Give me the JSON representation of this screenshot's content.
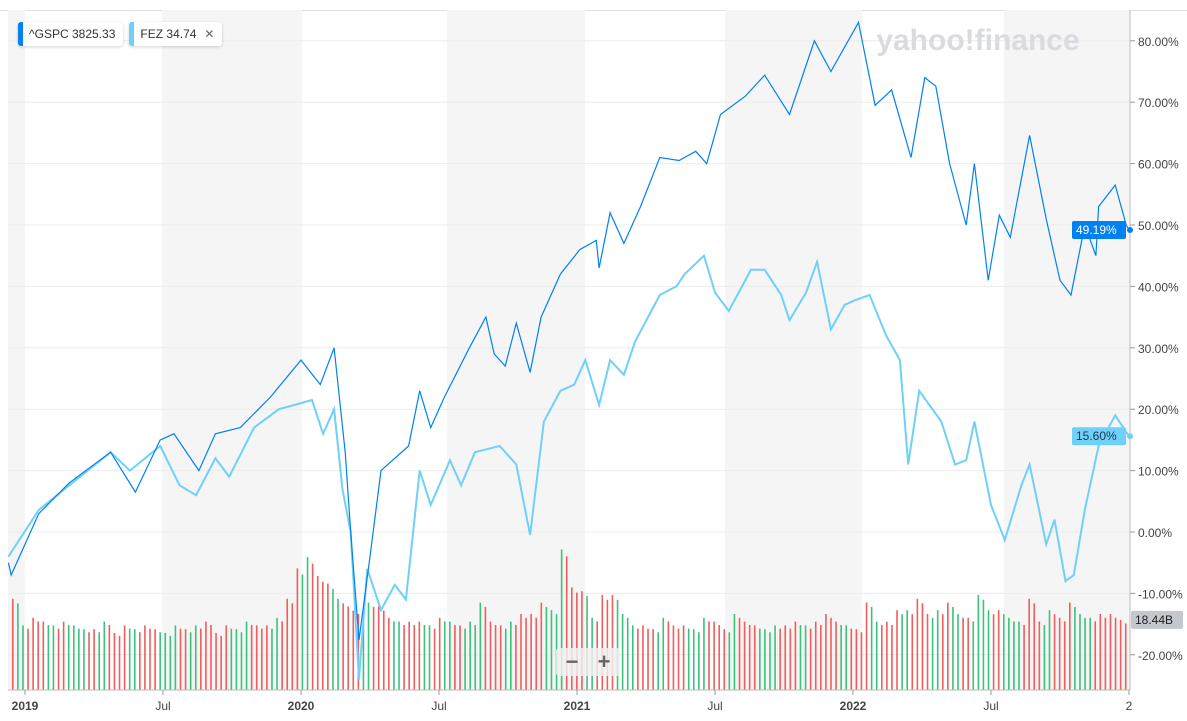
{
  "legend": [
    {
      "label": "^GSPC",
      "value": "3825.33",
      "color": "#0081f2"
    },
    {
      "label": "FEZ",
      "value": "34.74",
      "color": "#6fd0fa",
      "close": "✕"
    }
  ],
  "watermark": "yahoo!finance",
  "zoom": {
    "minus": "−",
    "plus": "+"
  },
  "chart_data": {
    "type": "line",
    "title": "",
    "xlabel": "",
    "ylabel": "",
    "ylim": [
      -25,
      85
    ],
    "x_ticks": [
      {
        "t": 2019,
        "label": "2019"
      },
      {
        "t": 2019.5,
        "label": "Jul"
      },
      {
        "t": 2020,
        "label": "2020"
      },
      {
        "t": 2020.5,
        "label": "Jul"
      },
      {
        "t": 2021,
        "label": "2021"
      },
      {
        "t": 2021.5,
        "label": "Jul"
      },
      {
        "t": 2022,
        "label": "2022"
      },
      {
        "t": 2022.5,
        "label": "Jul"
      },
      {
        "t": 2023,
        "label": "2"
      }
    ],
    "y_ticks": [
      80,
      70,
      60,
      50,
      40,
      30,
      20,
      10,
      0,
      -10,
      -20
    ],
    "y_tick_labels": [
      "80.00%",
      "70.00%",
      "60.00%",
      "50.00%",
      "40.00%",
      "30.00%",
      "20.00%",
      "10.00%",
      "0.00%",
      "-10.00%",
      "-20.00%"
    ],
    "series": [
      {
        "name": "^GSPC",
        "color": "#0081f2",
        "last_label": "49.19%",
        "last": 49.19,
        "points": [
          [
            2018.94,
            -5
          ],
          [
            2018.95,
            -7
          ],
          [
            2019.05,
            3
          ],
          [
            2019.16,
            8
          ],
          [
            2019.31,
            13
          ],
          [
            2019.4,
            6.5
          ],
          [
            2019.49,
            15
          ],
          [
            2019.54,
            16
          ],
          [
            2019.63,
            10
          ],
          [
            2019.69,
            16
          ],
          [
            2019.78,
            17
          ],
          [
            2019.89,
            22
          ],
          [
            2020.0,
            28
          ],
          [
            2020.07,
            24
          ],
          [
            2020.12,
            30
          ],
          [
            2020.16,
            13
          ],
          [
            2020.18,
            0
          ],
          [
            2020.21,
            -17.6
          ],
          [
            2020.25,
            -4
          ],
          [
            2020.29,
            10
          ],
          [
            2020.39,
            14
          ],
          [
            2020.43,
            23
          ],
          [
            2020.47,
            17
          ],
          [
            2020.52,
            22
          ],
          [
            2020.61,
            30
          ],
          [
            2020.67,
            35
          ],
          [
            2020.7,
            29
          ],
          [
            2020.74,
            27
          ],
          [
            2020.78,
            34
          ],
          [
            2020.83,
            26
          ],
          [
            2020.87,
            35
          ],
          [
            2020.94,
            42
          ],
          [
            2021.01,
            46
          ],
          [
            2021.07,
            47.5
          ],
          [
            2021.08,
            43
          ],
          [
            2021.12,
            52
          ],
          [
            2021.17,
            47
          ],
          [
            2021.23,
            53
          ],
          [
            2021.3,
            61
          ],
          [
            2021.37,
            60.5
          ],
          [
            2021.43,
            62
          ],
          [
            2021.47,
            60
          ],
          [
            2021.52,
            68
          ],
          [
            2021.61,
            71
          ],
          [
            2021.68,
            74.4
          ],
          [
            2021.77,
            68
          ],
          [
            2021.86,
            80
          ],
          [
            2021.92,
            75
          ],
          [
            2021.97,
            79
          ],
          [
            2022.02,
            83
          ],
          [
            2022.08,
            69.5
          ],
          [
            2022.14,
            72
          ],
          [
            2022.21,
            61
          ],
          [
            2022.26,
            74
          ],
          [
            2022.3,
            72.6
          ],
          [
            2022.35,
            60
          ],
          [
            2022.41,
            50
          ],
          [
            2022.44,
            60
          ],
          [
            2022.49,
            41
          ],
          [
            2022.53,
            51.6
          ],
          [
            2022.57,
            48
          ],
          [
            2022.64,
            64.6
          ],
          [
            2022.7,
            51
          ],
          [
            2022.75,
            41
          ],
          [
            2022.79,
            38.6
          ],
          [
            2022.84,
            50
          ],
          [
            2022.88,
            45
          ],
          [
            2022.89,
            53
          ],
          [
            2022.95,
            56.5
          ],
          [
            2022.99,
            50
          ],
          [
            2023.0,
            49.19
          ]
        ]
      },
      {
        "name": "FEZ",
        "color": "#6fd0fa",
        "last_label": "15.60%",
        "last": 15.6,
        "points": [
          [
            2018.94,
            -4
          ],
          [
            2019.05,
            3.6
          ],
          [
            2019.16,
            7.6
          ],
          [
            2019.31,
            13
          ],
          [
            2019.38,
            10
          ],
          [
            2019.49,
            14
          ],
          [
            2019.56,
            7.6
          ],
          [
            2019.62,
            6
          ],
          [
            2019.69,
            12
          ],
          [
            2019.74,
            9
          ],
          [
            2019.83,
            17
          ],
          [
            2019.92,
            20
          ],
          [
            2020.0,
            21
          ],
          [
            2020.04,
            21.5
          ],
          [
            2020.08,
            16
          ],
          [
            2020.12,
            20
          ],
          [
            2020.15,
            7
          ],
          [
            2020.18,
            0
          ],
          [
            2020.21,
            -24
          ],
          [
            2020.24,
            -6
          ],
          [
            2020.29,
            -12.7
          ],
          [
            2020.34,
            -8.6
          ],
          [
            2020.38,
            -11
          ],
          [
            2020.43,
            10
          ],
          [
            2020.47,
            4.4
          ],
          [
            2020.54,
            11.7
          ],
          [
            2020.58,
            7.6
          ],
          [
            2020.63,
            13
          ],
          [
            2020.72,
            14
          ],
          [
            2020.78,
            11
          ],
          [
            2020.83,
            -0.5
          ],
          [
            2020.88,
            18
          ],
          [
            2020.94,
            23
          ],
          [
            2020.99,
            24
          ],
          [
            2021.03,
            28
          ],
          [
            2021.08,
            20.7
          ],
          [
            2021.12,
            28
          ],
          [
            2021.17,
            25.6
          ],
          [
            2021.21,
            31
          ],
          [
            2021.3,
            38.6
          ],
          [
            2021.36,
            40
          ],
          [
            2021.39,
            42
          ],
          [
            2021.46,
            45
          ],
          [
            2021.5,
            39
          ],
          [
            2021.55,
            36
          ],
          [
            2021.63,
            42.7
          ],
          [
            2021.68,
            42.7
          ],
          [
            2021.74,
            38.6
          ],
          [
            2021.77,
            34.5
          ],
          [
            2021.83,
            39
          ],
          [
            2021.87,
            44
          ],
          [
            2021.92,
            33
          ],
          [
            2021.97,
            37
          ],
          [
            2022.01,
            37.8
          ],
          [
            2022.06,
            38.6
          ],
          [
            2022.12,
            32
          ],
          [
            2022.17,
            28
          ],
          [
            2022.2,
            11
          ],
          [
            2022.24,
            23
          ],
          [
            2022.32,
            18
          ],
          [
            2022.37,
            11
          ],
          [
            2022.41,
            11.7
          ],
          [
            2022.44,
            18
          ],
          [
            2022.5,
            4.4
          ],
          [
            2022.55,
            -1.3
          ],
          [
            2022.61,
            7.6
          ],
          [
            2022.64,
            11
          ],
          [
            2022.7,
            -2
          ],
          [
            2022.73,
            2
          ],
          [
            2022.77,
            -8
          ],
          [
            2022.8,
            -7
          ],
          [
            2022.84,
            3.6
          ],
          [
            2022.89,
            14
          ],
          [
            2022.95,
            19
          ],
          [
            2023.0,
            15.6
          ]
        ]
      }
    ],
    "volume": {
      "unit": "B",
      "last_label": "18.44B",
      "last": 18.44,
      "values": [
        24,
        17,
        19,
        18,
        17,
        18,
        17,
        16,
        16,
        18,
        15,
        17,
        16,
        17,
        16,
        15,
        17,
        16,
        17,
        18,
        15,
        17,
        16,
        18,
        17,
        17,
        19,
        24,
        32,
        35,
        30,
        28,
        24,
        22,
        20,
        23,
        22,
        19,
        18,
        18,
        18,
        17,
        19,
        18,
        17,
        18,
        23,
        18,
        17,
        18,
        20,
        20,
        23,
        21,
        37,
        27,
        26,
        19,
        25,
        25,
        20,
        17,
        17,
        16,
        19,
        17,
        17,
        16,
        19,
        18,
        16,
        20,
        18,
        17,
        16,
        17,
        17,
        18,
        17,
        18,
        20,
        18,
        17,
        16,
        23,
        18,
        18,
        21,
        21,
        24,
        20,
        21,
        23,
        20,
        19,
        25,
        21,
        21,
        19,
        18,
        24,
        18,
        21,
        19,
        23,
        20,
        19,
        20,
        20,
        18.44
      ],
      "direction": "dudduduududdudduududdduudduddudduddudduddududuudduddduuddudduuddudduuddudduudduddduddudduddududuuduuddudduud"
    },
    "up_color": "#3bc27c",
    "down_color": "#f25c5c"
  }
}
